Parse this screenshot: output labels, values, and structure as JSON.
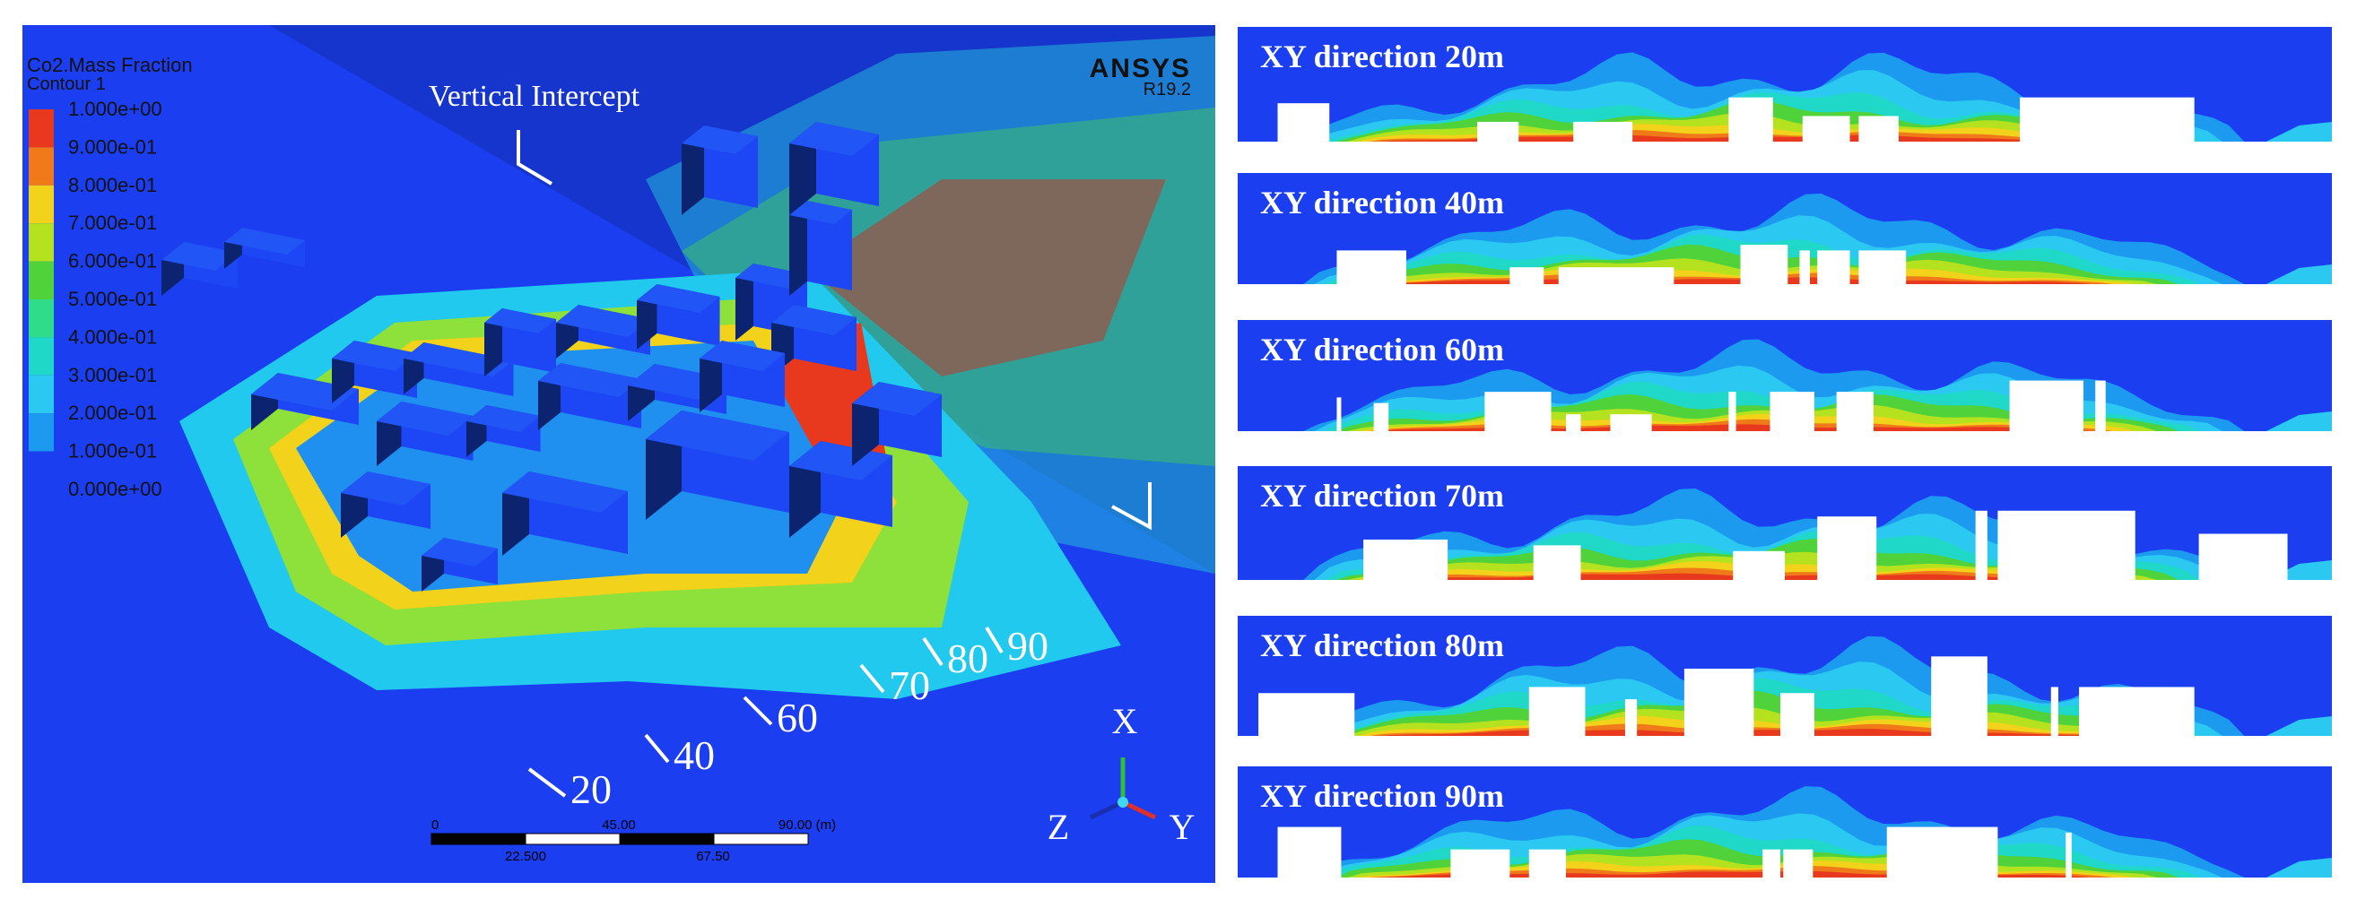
{
  "left_panel": {
    "legend": {
      "title": "Co2.Mass Fraction",
      "subtitle": "Contour 1",
      "labels": [
        "1.000e+00",
        "9.000e-01",
        "8.000e-01",
        "7.000e-01",
        "6.000e-01",
        "5.000e-01",
        "4.000e-01",
        "3.000e-01",
        "2.000e-01",
        "1.000e-01",
        "0.000e+00"
      ]
    },
    "logo": "ANSYS",
    "version": "R19.2",
    "annotation": "Vertical Intercept",
    "section_labels": [
      "20",
      "40",
      "60",
      "70",
      "80",
      "90"
    ],
    "scale_bar": {
      "top_labels": [
        "0",
        "45.00",
        "90.00 (m)"
      ],
      "bottom_labels": [
        "22.500",
        "67.50"
      ]
    },
    "axes": {
      "x": "X",
      "y": "Y",
      "z": "Z"
    }
  },
  "right_panel": {
    "strips": [
      {
        "title": "XY direction 20m"
      },
      {
        "title": "XY direction 40m"
      },
      {
        "title": "XY direction 60m"
      },
      {
        "title": "XY direction 70m"
      },
      {
        "title": "XY direction 80m"
      },
      {
        "title": "XY direction 90m"
      }
    ]
  }
}
